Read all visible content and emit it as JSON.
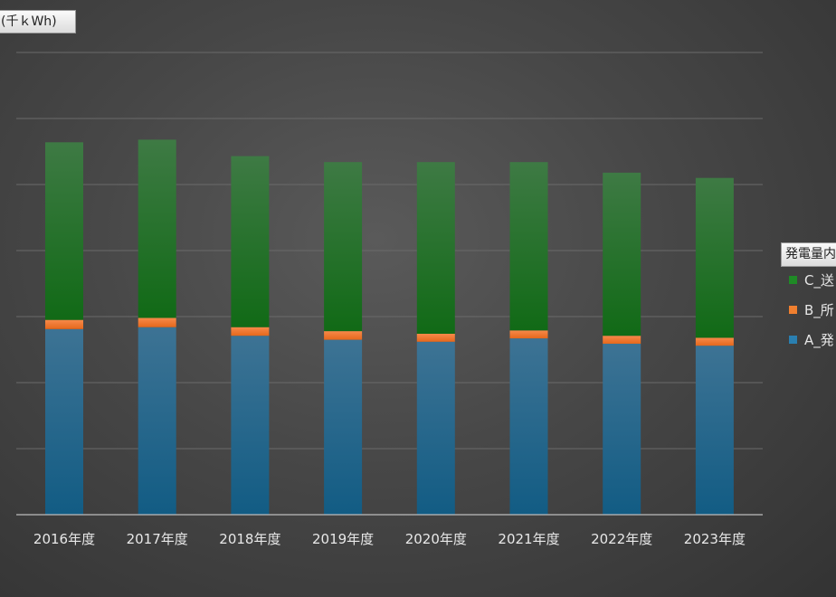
{
  "unit_label": "(千ｋWh)",
  "legend_title": "発電量内訳",
  "colors": {
    "series_c": "#1f6e23",
    "series_b": "#f07f2f",
    "series_a": "#1f6a8e",
    "gridline": "#6a6a6a",
    "axis": "#bdbdbd"
  },
  "chart_data": {
    "type": "bar",
    "stacked": true,
    "categories": [
      "2016年度",
      "2017年度",
      "2018年度",
      "2019年度",
      "2020年度",
      "2021年度",
      "2022年度",
      "2023年度"
    ],
    "series": [
      {
        "name": "A_発",
        "values": [
          2.81,
          2.84,
          2.71,
          2.65,
          2.62,
          2.67,
          2.59,
          2.56
        ]
      },
      {
        "name": "B_所",
        "values": [
          0.14,
          0.14,
          0.13,
          0.13,
          0.12,
          0.12,
          0.12,
          0.12
        ]
      },
      {
        "name": "C_送",
        "values": [
          2.69,
          2.7,
          2.59,
          2.56,
          2.6,
          2.55,
          2.47,
          2.42
        ]
      }
    ],
    "ylim": [
      0,
      7
    ],
    "y_gridlines": [
      1,
      2,
      3,
      4,
      5,
      6,
      7
    ],
    "grid": true,
    "legend_position": "right",
    "title": "",
    "xlabel": "",
    "ylabel": ""
  }
}
